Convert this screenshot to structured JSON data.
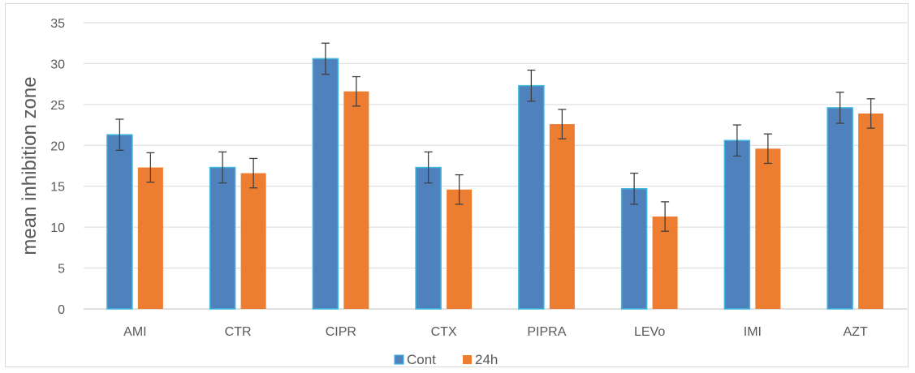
{
  "chart_data": {
    "type": "bar",
    "title": "",
    "xlabel": "",
    "ylabel": "mean inhibition zone",
    "ylim": [
      0,
      35
    ],
    "yticks": [
      0,
      5,
      10,
      15,
      20,
      25,
      30,
      35
    ],
    "grid": true,
    "legend_position": "bottom",
    "categories": [
      "AMI",
      "CTR",
      "CIPR",
      "CTX",
      "PIPRA",
      "LEVo",
      "IMI",
      "AZT"
    ],
    "series": [
      {
        "name": "Cont",
        "color": "#4f81bd",
        "values": [
          21.3,
          17.3,
          30.6,
          17.3,
          27.3,
          14.7,
          20.6,
          24.6
        ],
        "error": [
          1.9,
          1.9,
          1.9,
          1.9,
          1.9,
          1.9,
          1.9,
          1.9
        ]
      },
      {
        "name": "24h",
        "color": "#ed7d31",
        "values": [
          17.3,
          16.6,
          26.6,
          14.6,
          22.6,
          11.3,
          19.6,
          23.9
        ],
        "error": [
          1.8,
          1.8,
          1.8,
          1.8,
          1.8,
          1.8,
          1.8,
          1.8
        ]
      }
    ],
    "colors": {
      "grid": "#d9d9d9",
      "axis": "#bfbfbf",
      "bar_outline": "#3fb8e0",
      "error_bar": "#404040"
    }
  }
}
